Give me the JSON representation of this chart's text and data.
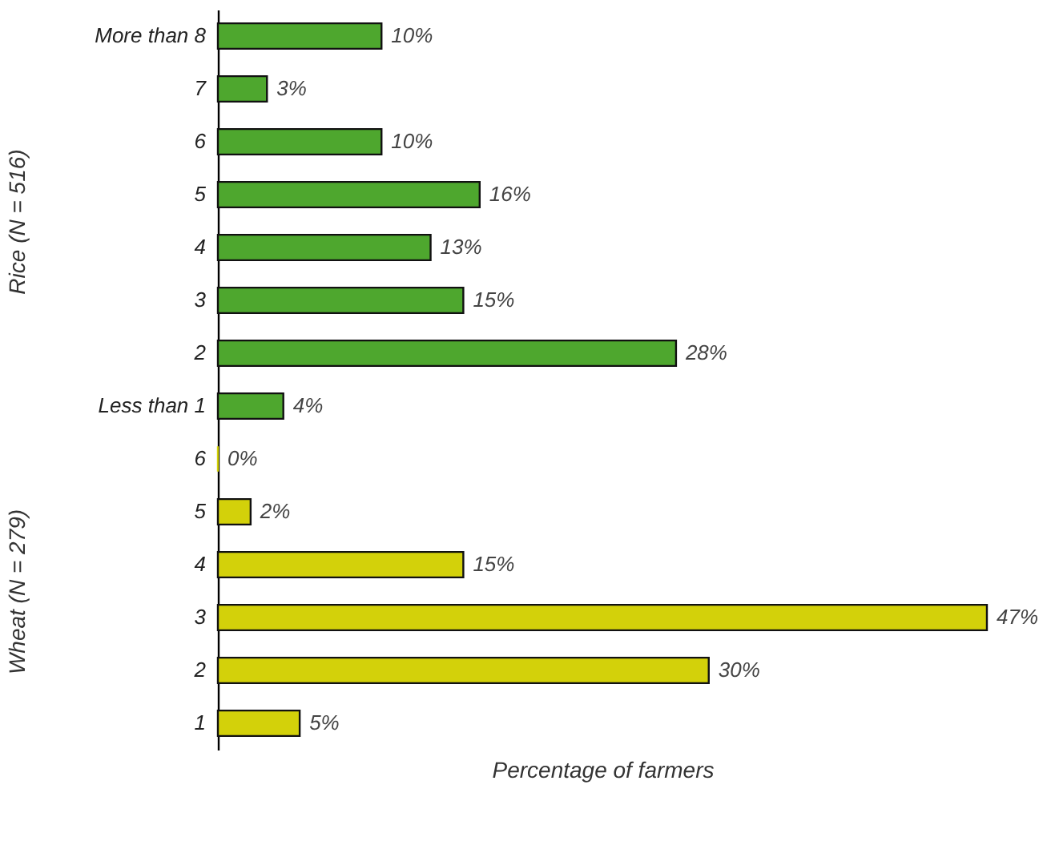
{
  "chart_data": [
    {
      "type": "bar",
      "orientation": "horizontal",
      "ylabel": "Rice (N = 516)",
      "categories": [
        "More than 8",
        "7",
        "6",
        "5",
        "4",
        "3",
        "2",
        "Less than 1"
      ],
      "values": [
        10,
        3,
        10,
        16,
        13,
        15,
        28,
        4
      ],
      "value_labels": [
        "10%",
        "3%",
        "10%",
        "16%",
        "13%",
        "15%",
        "28%",
        "4%"
      ],
      "color": "#4ea72e",
      "tick_labels": "y"
    },
    {
      "type": "bar",
      "orientation": "horizontal",
      "ylabel": "Wheat (N = 279)",
      "xlabel": "Percentage of farmers",
      "categories": [
        "6",
        "5",
        "4",
        "3",
        "2",
        "1"
      ],
      "values": [
        0,
        2,
        15,
        47,
        30,
        5
      ],
      "value_labels": [
        "0%",
        "2%",
        "15%",
        "47%",
        "30%",
        "5%"
      ],
      "color": "#d3d10a",
      "tick_labels": "y"
    }
  ]
}
